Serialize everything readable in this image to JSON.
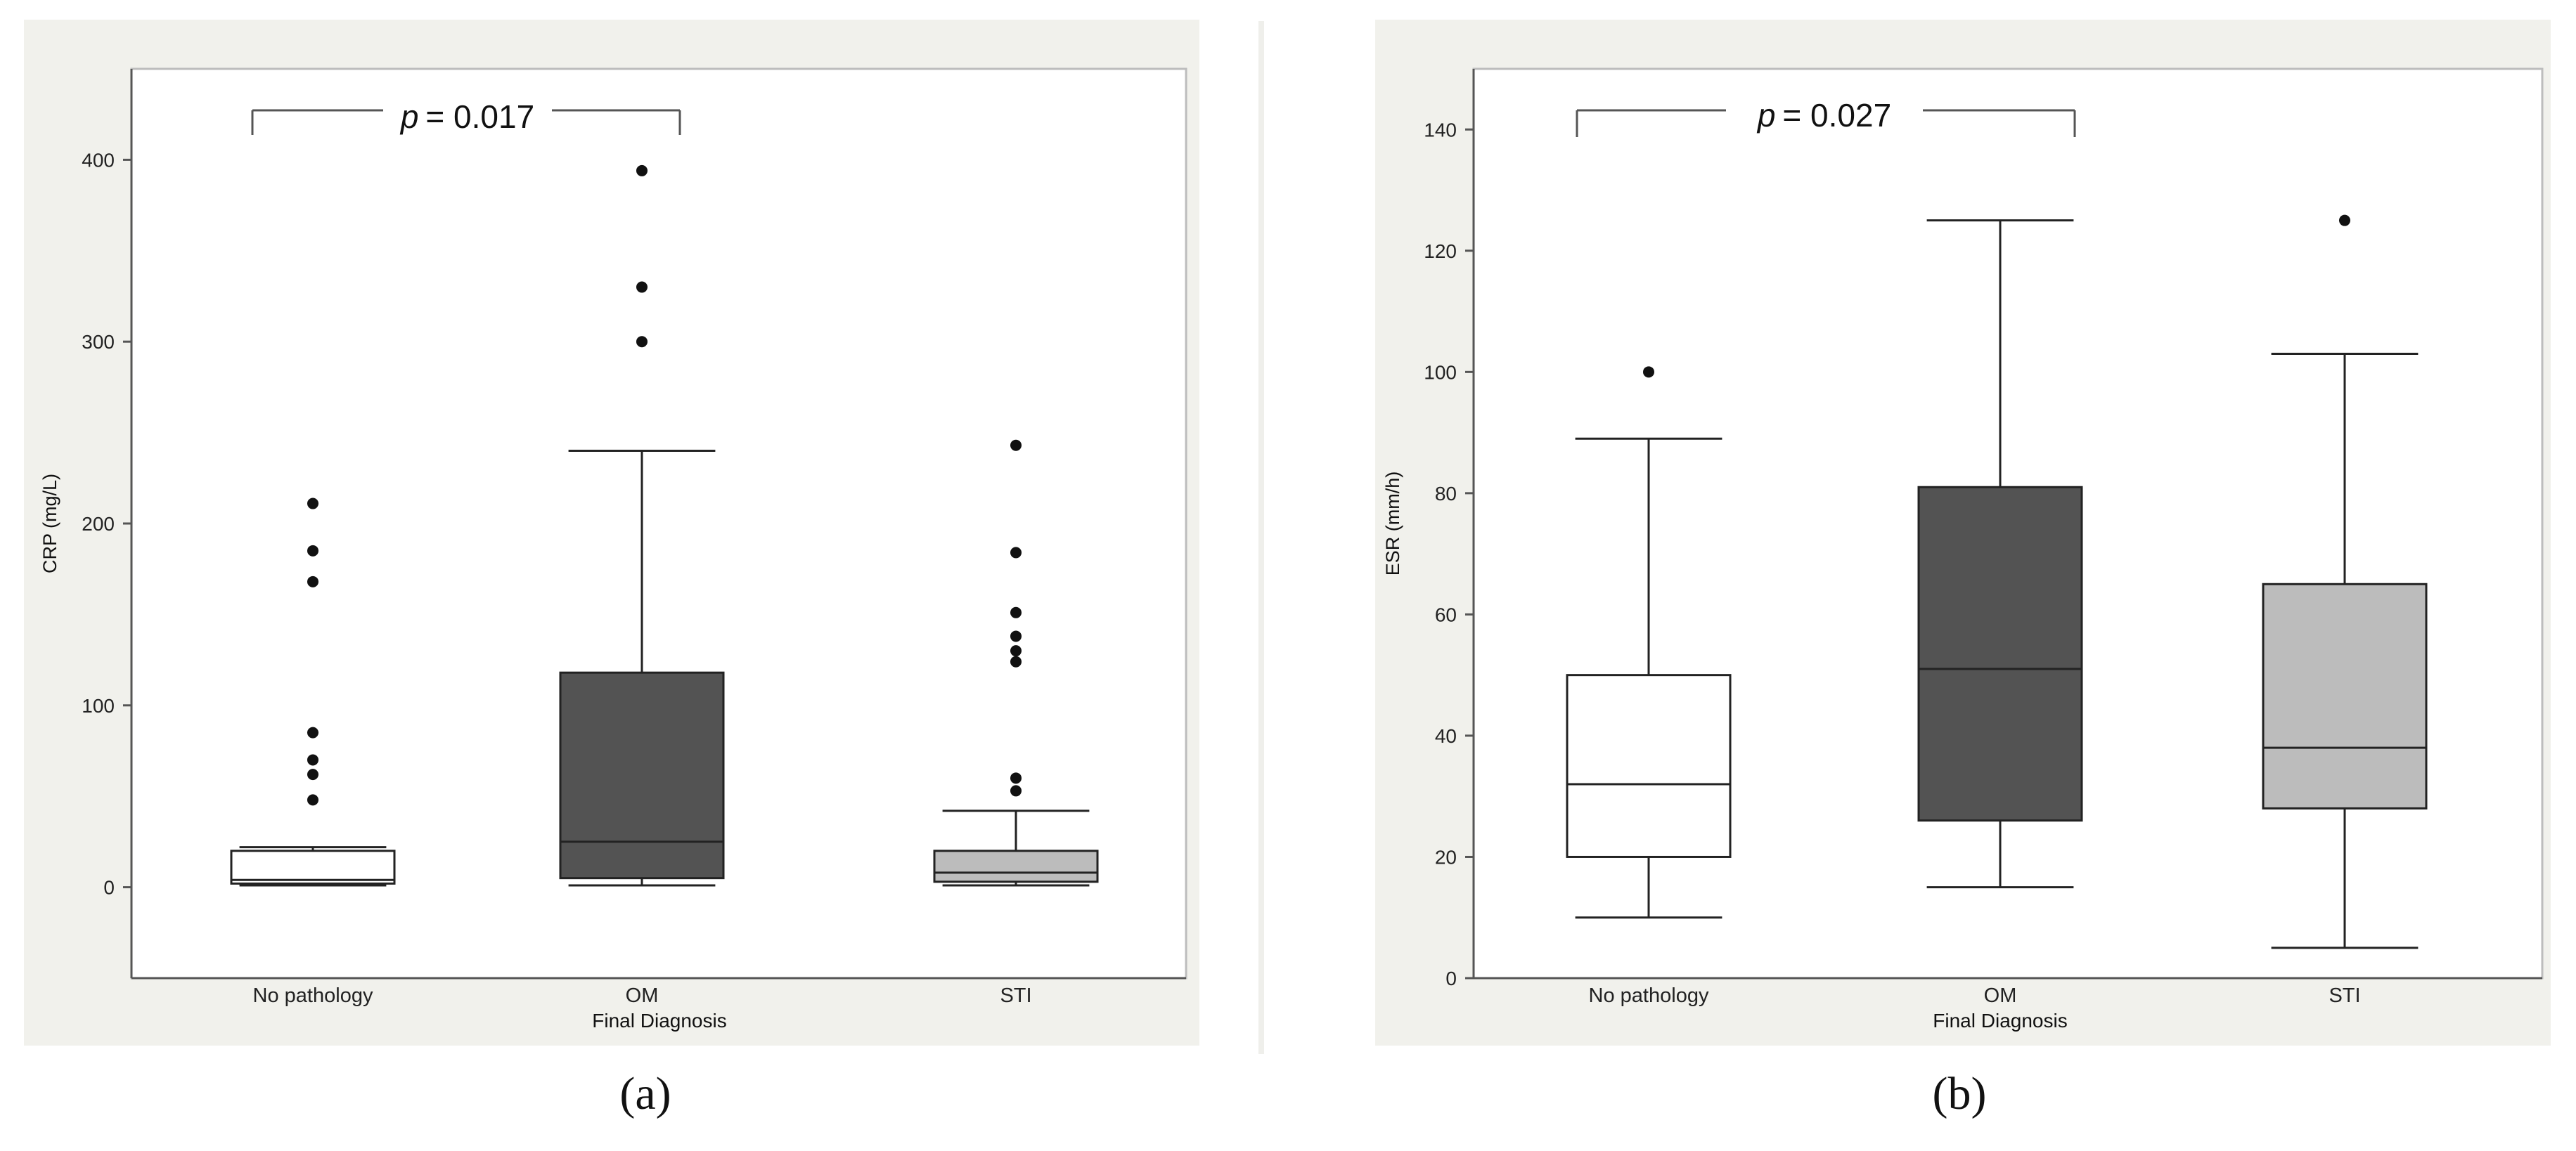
{
  "panels": [
    {
      "sublabel": "(a)",
      "significance": {
        "prefix": "p",
        "value": "= 0.017"
      },
      "fills": [
        "#ffffff",
        "#535353",
        "#bcbcbc"
      ]
    },
    {
      "sublabel": "(b)",
      "significance": {
        "prefix": "p",
        "value": "= 0.027"
      },
      "fills": [
        "#ffffff",
        "#535353",
        "#bcbcbc"
      ]
    }
  ],
  "chart_data": [
    {
      "type": "box",
      "title": "",
      "xlabel": "Final Diagnosis",
      "ylabel": "CRP (mg/L)",
      "ylim": [
        -50,
        450
      ],
      "yticks": [
        0,
        100,
        200,
        300,
        400
      ],
      "categories": [
        "No pathology",
        "OM",
        "STI"
      ],
      "boxes": [
        {
          "category": "No pathology",
          "whisker_low": 1,
          "q1": 2,
          "median": 4,
          "q3": 20,
          "whisker_high": 22,
          "outliers": [
            48,
            62,
            70,
            85,
            168,
            185,
            211
          ]
        },
        {
          "category": "OM",
          "whisker_low": 1,
          "q1": 5,
          "median": 25,
          "q3": 118,
          "whisker_high": 240,
          "outliers": [
            300,
            330,
            394
          ]
        },
        {
          "category": "STI",
          "whisker_low": 1,
          "q1": 3,
          "median": 8,
          "q3": 20,
          "whisker_high": 42,
          "outliers": [
            53,
            60,
            124,
            130,
            138,
            151,
            184,
            243
          ]
        }
      ],
      "comparison": {
        "from": "No pathology",
        "to": "OM",
        "label": "p = 0.017"
      },
      "grid": false
    },
    {
      "type": "box",
      "title": "",
      "xlabel": "Final Diagnosis",
      "ylabel": "ESR (mm/h)",
      "ylim": [
        0,
        150
      ],
      "yticks": [
        0,
        20,
        40,
        60,
        80,
        100,
        120,
        140
      ],
      "categories": [
        "No pathology",
        "OM",
        "STI"
      ],
      "boxes": [
        {
          "category": "No pathology",
          "whisker_low": 10,
          "q1": 20,
          "median": 32,
          "q3": 50,
          "whisker_high": 89,
          "outliers": [
            100
          ]
        },
        {
          "category": "OM",
          "whisker_low": 15,
          "q1": 26,
          "median": 51,
          "q3": 81,
          "whisker_high": 125,
          "outliers": []
        },
        {
          "category": "STI",
          "whisker_low": 5,
          "q1": 28,
          "median": 38,
          "q3": 65,
          "whisker_high": 103,
          "outliers": [
            125
          ]
        }
      ],
      "comparison": {
        "from": "No pathology",
        "to": "OM",
        "label": "p = 0.027"
      },
      "grid": false
    }
  ]
}
